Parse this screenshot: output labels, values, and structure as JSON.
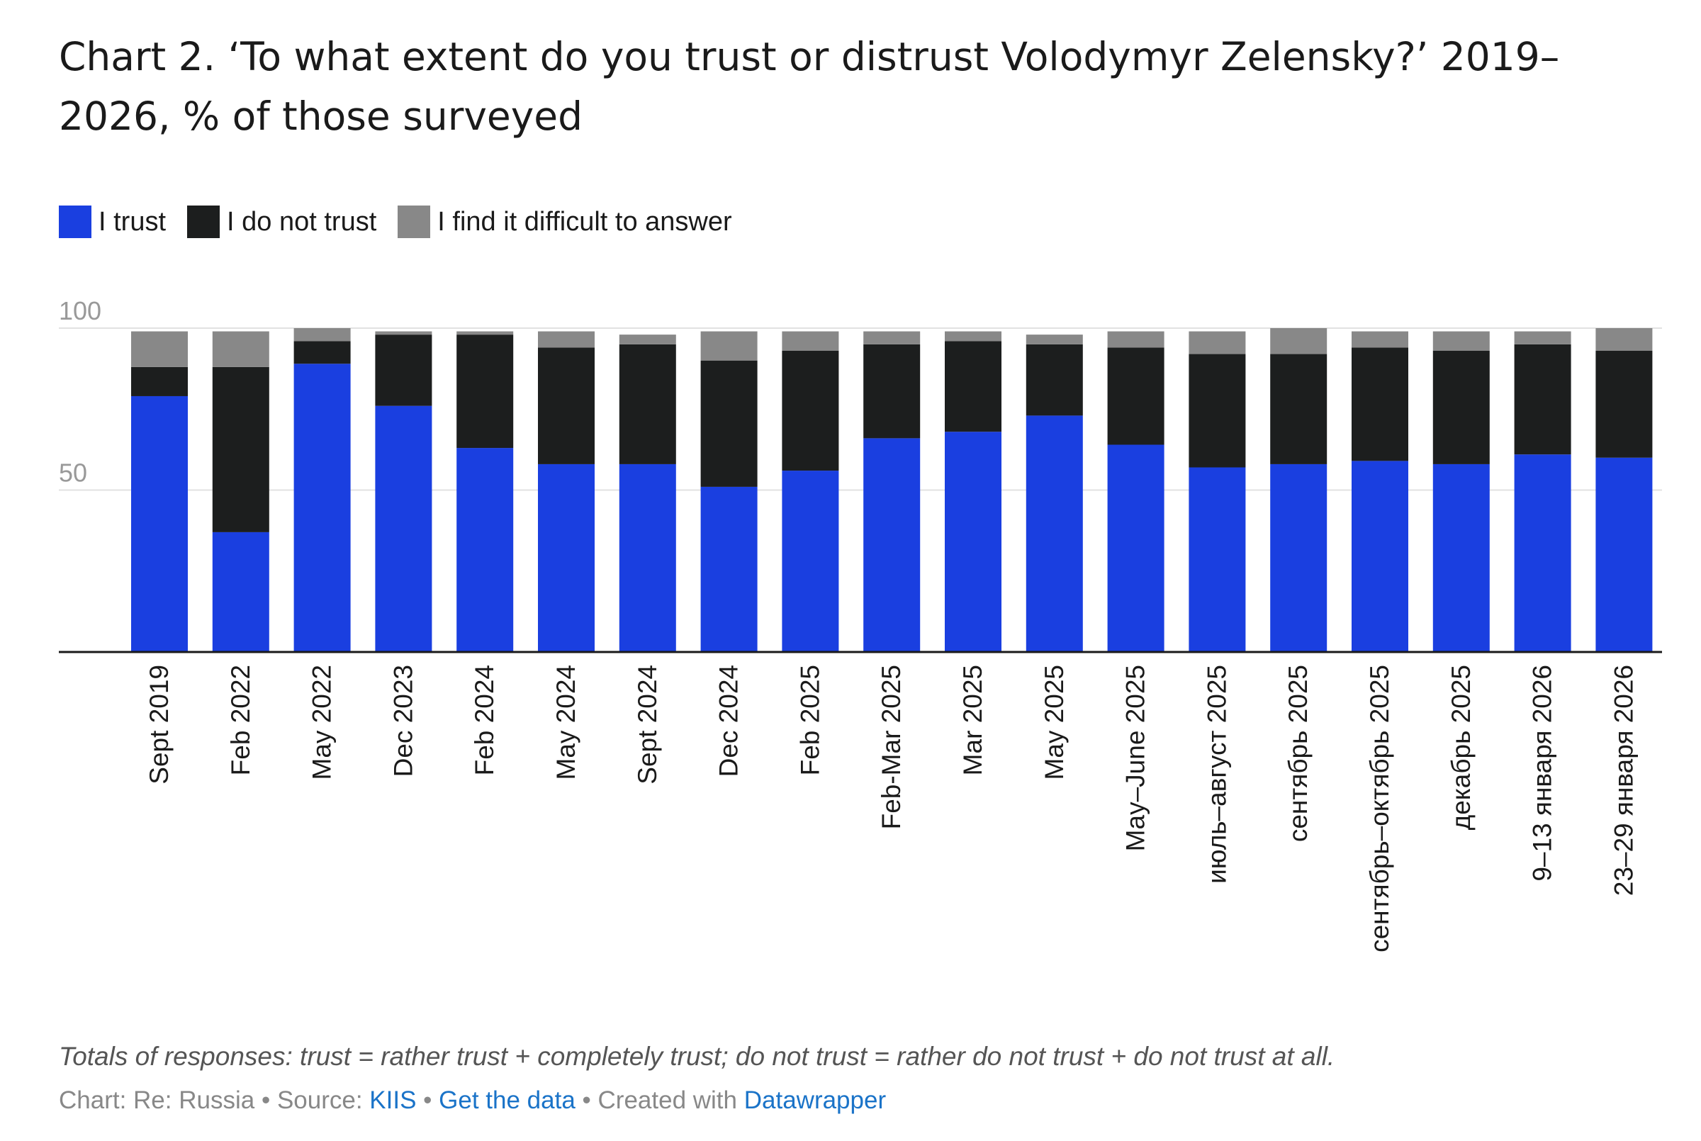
{
  "title": "Chart 2. ‘To what extent do you trust or distrust Volodymyr Zelensky?’ 2019–2026, % of those surveyed",
  "legend": [
    {
      "label": "I trust",
      "color": "#1a3fe0"
    },
    {
      "label": "I do not trust",
      "color": "#1c1e1e"
    },
    {
      "label": "I find it difficult to answer",
      "color": "#888888"
    }
  ],
  "chart_data": {
    "type": "bar",
    "stacked": true,
    "categories": [
      "Sept 2019",
      "Feb 2022",
      "May 2022",
      "Dec 2023",
      "Feb 2024",
      "May 2024",
      "Sept 2024",
      "Dec 2024",
      "Feb 2025",
      "Feb-Mar 2025",
      "Mar 2025",
      "May 2025",
      "May–June 2025",
      "июль–август 2025",
      "сентябрь 2025",
      "сентябрь–октябрь 2025",
      "декабрь 2025",
      "9–13 января 2026",
      "23–29 января 2026"
    ],
    "series": [
      {
        "name": "I trust",
        "color": "#1a3fe0",
        "values": [
          79,
          37,
          89,
          76,
          63,
          58,
          58,
          51,
          56,
          66,
          68,
          73,
          64,
          57,
          58,
          59,
          58,
          61,
          60
        ]
      },
      {
        "name": "I do not trust",
        "color": "#1c1e1e",
        "values": [
          9,
          51,
          7,
          22,
          35,
          36,
          37,
          39,
          37,
          29,
          28,
          22,
          30,
          35,
          34,
          35,
          35,
          34,
          33
        ]
      },
      {
        "name": "I find it difficult to answer",
        "color": "#888888",
        "values": [
          11,
          11,
          4,
          1,
          1,
          5,
          3,
          9,
          6,
          4,
          3,
          3,
          5,
          7,
          8,
          5,
          6,
          4,
          7
        ]
      }
    ],
    "yticks": [
      50,
      100
    ],
    "ylim": [
      0,
      100
    ],
    "xlabel": "",
    "ylabel": "",
    "grid": true,
    "legend_position": "top-left"
  },
  "note": "Totals of responses: trust = rather trust + completely trust; do not trust = rather do not trust + do not trust at all.",
  "footer": {
    "chart_by": "Chart: Re: Russia",
    "source_label": "Source:",
    "source_link": "KIIS",
    "data_link": "Get the data",
    "created_with": "Created with",
    "tool_link": "Datawrapper"
  }
}
